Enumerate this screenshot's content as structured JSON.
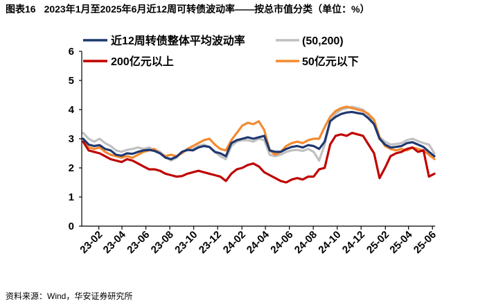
{
  "figure_label": "图表16",
  "chart_data": {
    "type": "line",
    "title": "2023年1月至2025年6月近12周可转债波动率——按总市值分类（单位：%）",
    "x": [
      "2023-01-06",
      "2023-01-20",
      "2023-02-03",
      "2023-02-17",
      "2023-03-03",
      "2023-03-17",
      "2023-03-31",
      "2023-04-14",
      "2023-04-28",
      "2023-05-12",
      "2023-05-26",
      "2023-06-09",
      "2023-06-23",
      "2023-07-07",
      "2023-07-21",
      "2023-08-04",
      "2023-08-18",
      "2023-09-01",
      "2023-09-15",
      "2023-09-29",
      "2023-10-13",
      "2023-10-27",
      "2023-11-10",
      "2023-11-24",
      "2023-12-08",
      "2023-12-22",
      "2024-01-05",
      "2024-01-19",
      "2024-02-02",
      "2024-02-16",
      "2024-03-01",
      "2024-03-15",
      "2024-03-29",
      "2024-04-12",
      "2024-04-26",
      "2024-05-10",
      "2024-05-24",
      "2024-06-07",
      "2024-06-21",
      "2024-07-05",
      "2024-07-19",
      "2024-08-02",
      "2024-08-16",
      "2024-08-30",
      "2024-09-13",
      "2024-09-27",
      "2024-10-11",
      "2024-10-25",
      "2024-11-08",
      "2024-11-22",
      "2024-12-06",
      "2024-12-20",
      "2025-01-03",
      "2025-01-17",
      "2025-01-31",
      "2025-02-14",
      "2025-02-28",
      "2025-03-14",
      "2025-03-28",
      "2025-04-11",
      "2025-04-25",
      "2025-05-09",
      "2025-05-23",
      "2025-06-06",
      "2025-06-20"
    ],
    "x_tick_labels": [
      "23-02",
      "23-04",
      "23-06",
      "23-08",
      "23-10",
      "23-12",
      "24-02",
      "24-04",
      "24-06",
      "24-08",
      "24-10",
      "24-12",
      "25-02",
      "25-04",
      "25-06"
    ],
    "y_ticks": [
      0,
      1,
      2,
      3,
      4,
      5,
      6
    ],
    "ylim": [
      0,
      6
    ],
    "grid": false,
    "legend_position": "top",
    "series": [
      {
        "name": "近12周转债整体平均波动率",
        "color": "#1F3871",
        "values": [
          3.0,
          2.8,
          2.75,
          2.78,
          2.65,
          2.6,
          2.45,
          2.42,
          2.5,
          2.48,
          2.55,
          2.6,
          2.62,
          2.58,
          2.5,
          2.35,
          2.3,
          2.38,
          2.55,
          2.62,
          2.6,
          2.7,
          2.75,
          2.72,
          2.55,
          2.5,
          2.4,
          2.85,
          2.95,
          3.0,
          3.05,
          3.0,
          3.05,
          3.1,
          2.6,
          2.55,
          2.55,
          2.65,
          2.72,
          2.75,
          2.7,
          2.78,
          2.75,
          2.65,
          2.9,
          3.6,
          3.75,
          3.85,
          3.9,
          3.92,
          3.88,
          3.85,
          3.7,
          3.5,
          3.0,
          2.8,
          2.7,
          2.72,
          2.75,
          2.85,
          2.88,
          2.8,
          2.72,
          2.55,
          2.4
        ]
      },
      {
        "name": "(50,200)",
        "color": "#C0C0C0",
        "values": [
          3.2,
          3.0,
          2.9,
          3.0,
          2.85,
          2.75,
          2.6,
          2.55,
          2.62,
          2.65,
          2.7,
          2.65,
          2.7,
          2.62,
          2.55,
          2.4,
          2.25,
          2.35,
          2.55,
          2.6,
          2.65,
          2.75,
          2.8,
          2.72,
          2.55,
          2.4,
          2.3,
          2.75,
          2.9,
          2.95,
          2.95,
          2.9,
          3.0,
          2.95,
          2.45,
          2.4,
          2.45,
          2.55,
          2.6,
          2.62,
          2.58,
          2.65,
          2.55,
          2.25,
          2.8,
          3.6,
          3.85,
          4.0,
          4.05,
          4.1,
          4.05,
          4.0,
          3.8,
          3.6,
          3.05,
          2.9,
          2.8,
          2.82,
          2.85,
          2.95,
          3.0,
          2.92,
          2.85,
          2.8,
          2.5
        ]
      },
      {
        "name": "200亿元以上",
        "color": "#C00000",
        "values": [
          2.9,
          2.6,
          2.55,
          2.5,
          2.4,
          2.3,
          2.25,
          2.2,
          2.3,
          2.25,
          2.15,
          2.05,
          1.95,
          1.95,
          1.9,
          1.8,
          1.75,
          1.7,
          1.72,
          1.8,
          1.85,
          1.9,
          1.85,
          1.8,
          1.75,
          1.7,
          1.55,
          1.8,
          1.95,
          2.0,
          2.1,
          2.15,
          2.05,
          1.85,
          1.75,
          1.65,
          1.55,
          1.5,
          1.6,
          1.65,
          1.6,
          1.7,
          1.7,
          1.95,
          2.0,
          2.8,
          3.1,
          3.15,
          3.1,
          3.2,
          3.15,
          3.1,
          2.8,
          2.5,
          1.65,
          2.0,
          2.4,
          2.5,
          2.55,
          2.65,
          2.7,
          2.55,
          2.6,
          1.7,
          1.8
        ]
      },
      {
        "name": "50亿元以下",
        "color": "#F28A30",
        "values": [
          2.9,
          2.7,
          2.65,
          2.7,
          2.55,
          2.45,
          2.4,
          2.35,
          2.4,
          2.35,
          2.45,
          2.55,
          2.6,
          2.65,
          2.5,
          2.4,
          2.45,
          2.4,
          2.5,
          2.65,
          2.75,
          2.85,
          2.95,
          3.0,
          2.8,
          2.65,
          2.6,
          2.95,
          3.2,
          3.45,
          3.55,
          3.5,
          3.6,
          3.3,
          2.6,
          2.45,
          2.55,
          2.75,
          2.85,
          2.9,
          2.85,
          2.95,
          3.0,
          3.0,
          3.4,
          3.75,
          3.95,
          4.05,
          4.1,
          4.05,
          4.0,
          3.95,
          3.85,
          3.65,
          3.05,
          2.75,
          2.65,
          2.6,
          2.65,
          2.6,
          2.7,
          2.65,
          2.6,
          2.45,
          2.3
        ]
      }
    ]
  },
  "source": "资料来源：Wind，华安证券研究所"
}
